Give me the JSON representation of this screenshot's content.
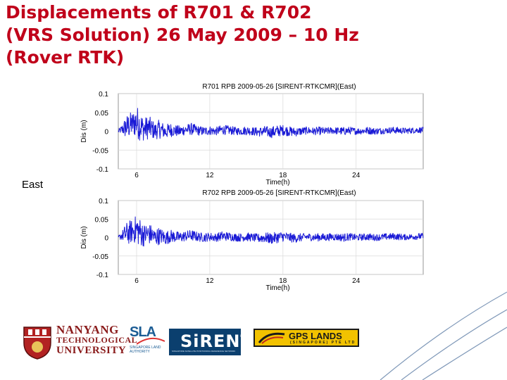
{
  "slide": {
    "title_lines": [
      "Displacements of R701 & R702",
      "(VRS Solution) 26 May 2009 – 10 Hz",
      "(Rover RTK)"
    ],
    "side_label": "East"
  },
  "logos": {
    "ntu": [
      "NANYANG",
      "TECHNOLOGICAL",
      "UNIVERSITY"
    ],
    "sla": "SLA",
    "sla_sub": "SINGAPORE LAND AUTHORITY",
    "sirent": "SiRENT",
    "sirent_sub": "SINGAPORE SATELLITE POSITIONING REFERENCE NETWORK",
    "gps": "GPS LANDS",
    "gps_sub": "(SINGAPORE) PTE LTD"
  },
  "colors": {
    "title": "#c0001a",
    "series": "#1a1ad6",
    "grid": "#d9d9d9"
  },
  "chart_data": [
    {
      "type": "line",
      "title": "R701 RPB 2009-05-26 [SIRENT-RTKCMR](East)",
      "xlabel": "Time(h)",
      "ylabel": "Dis (m)",
      "xlim": [
        4.5,
        29.5
      ],
      "ylim": [
        -0.1,
        0.1
      ],
      "xticks": [
        6,
        12,
        18,
        24
      ],
      "yticks": [
        0.1,
        0.05,
        0,
        -0.05,
        -0.1
      ],
      "ytick_labels": [
        "0.1",
        "0.05",
        "0",
        "-0.05",
        "-0.1"
      ],
      "grid": true,
      "series": [
        {
          "x": [
            4.5,
            4.8,
            5.1,
            5.4,
            5.7,
            6.0,
            6.3,
            6.6,
            6.9,
            7.2,
            7.5,
            7.8,
            8.1,
            8.4,
            8.7,
            9.0,
            9.5,
            10.0,
            10.5,
            11.0,
            11.5,
            12.0,
            12.5,
            13.0,
            13.5,
            14.0,
            14.5,
            15.0,
            15.5,
            16.0,
            16.5,
            17.0,
            17.5,
            18.0,
            18.5,
            19.0,
            19.5,
            20.0,
            20.5,
            21.0,
            21.5,
            22.0,
            22.5,
            23.0,
            23.5,
            24.0,
            24.5,
            25.0,
            25.5,
            26.0,
            26.5,
            27.0,
            27.5,
            28.0,
            28.5,
            29.0,
            29.5
          ],
          "envelope": [
            0.005,
            0.012,
            0.03,
            0.035,
            0.032,
            0.045,
            0.04,
            0.03,
            0.032,
            0.028,
            0.022,
            0.025,
            0.022,
            0.018,
            0.02,
            0.016,
            0.015,
            0.014,
            0.016,
            0.013,
            0.012,
            0.012,
            0.011,
            0.013,
            0.012,
            0.011,
            0.01,
            0.012,
            0.011,
            0.012,
            0.014,
            0.015,
            0.016,
            0.014,
            0.013,
            0.012,
            0.011,
            0.01,
            0.01,
            0.011,
            0.01,
            0.009,
            0.01,
            0.011,
            0.01,
            0.009,
            0.009,
            0.01,
            0.009,
            0.009,
            0.008,
            0.009,
            0.009,
            0.008,
            0.008,
            0.008,
            0.008
          ],
          "trend": [
            0.0,
            0.005,
            0.01,
            0.015,
            0.02,
            0.025,
            0.015,
            0.005,
            0.01,
            0.008,
            0.0,
            0.005,
            0.003,
            -0.002,
            0.004,
            0.002,
            0.0,
            0.004,
            0.006,
            0.002,
            0.0,
            0.002,
            0.0,
            0.004,
            0.003,
            0.001,
            0.0,
            0.002,
            0.0,
            -0.002,
            0.0,
            -0.003,
            0.0,
            0.003,
            0.0,
            -0.002,
            0.0,
            0.002,
            0.0,
            0.001,
            0.0,
            0.002,
            0.001,
            0.0,
            0.002,
            0.0,
            0.001,
            0.002,
            0.0,
            0.001,
            0.002,
            0.003,
            0.002,
            0.001,
            0.002,
            0.003,
            0.003
          ]
        }
      ]
    },
    {
      "type": "line",
      "title": "R702 RPB 2009-05-26 [SIRENT-RTKCMR](East)",
      "xlabel": "Time(h)",
      "ylabel": "Dis (m)",
      "xlim": [
        4.5,
        29.5
      ],
      "ylim": [
        -0.1,
        0.1
      ],
      "xticks": [
        6,
        12,
        18,
        24
      ],
      "yticks": [
        0.1,
        0.05,
        0,
        -0.05,
        -0.1
      ],
      "ytick_labels": [
        "0.1",
        "0.05",
        "0",
        "-0.05",
        "-0.1"
      ],
      "grid": true,
      "series": [
        {
          "x": [
            4.5,
            4.8,
            5.1,
            5.4,
            5.7,
            6.0,
            6.3,
            6.6,
            6.9,
            7.2,
            7.5,
            7.8,
            8.1,
            8.4,
            8.7,
            9.0,
            9.5,
            10.0,
            10.5,
            11.0,
            11.5,
            12.0,
            12.5,
            13.0,
            13.5,
            14.0,
            14.5,
            15.0,
            15.5,
            16.0,
            16.5,
            17.0,
            17.5,
            18.0,
            18.5,
            19.0,
            19.5,
            20.0,
            20.5,
            21.0,
            21.5,
            22.0,
            22.5,
            23.0,
            23.5,
            24.0,
            24.5,
            25.0,
            25.5,
            26.0,
            26.5,
            27.0,
            27.5,
            28.0,
            28.5,
            29.0,
            29.5
          ],
          "envelope": [
            0.005,
            0.012,
            0.028,
            0.033,
            0.03,
            0.042,
            0.038,
            0.03,
            0.03,
            0.026,
            0.022,
            0.024,
            0.02,
            0.018,
            0.019,
            0.016,
            0.015,
            0.014,
            0.015,
            0.013,
            0.012,
            0.012,
            0.011,
            0.013,
            0.012,
            0.011,
            0.011,
            0.012,
            0.011,
            0.012,
            0.014,
            0.015,
            0.015,
            0.014,
            0.013,
            0.012,
            0.011,
            0.01,
            0.01,
            0.011,
            0.01,
            0.01,
            0.01,
            0.011,
            0.01,
            0.009,
            0.009,
            0.01,
            0.009,
            0.009,
            0.009,
            0.009,
            0.009,
            0.008,
            0.008,
            0.009,
            0.009
          ],
          "trend": [
            0.0,
            0.005,
            0.01,
            0.014,
            0.018,
            0.022,
            0.014,
            0.006,
            0.01,
            0.008,
            0.0,
            0.004,
            0.003,
            -0.002,
            0.004,
            0.003,
            0.0,
            0.004,
            0.006,
            0.002,
            0.0,
            0.002,
            0.0,
            0.004,
            0.003,
            0.001,
            0.0,
            0.002,
            0.0,
            -0.002,
            0.0,
            -0.003,
            0.0,
            0.003,
            0.0,
            -0.002,
            0.0,
            0.002,
            0.0,
            0.001,
            0.0,
            0.002,
            0.001,
            0.0,
            0.002,
            0.0,
            0.001,
            0.002,
            0.0,
            0.001,
            0.002,
            0.003,
            0.002,
            0.001,
            0.002,
            0.003,
            0.003
          ]
        }
      ]
    }
  ]
}
